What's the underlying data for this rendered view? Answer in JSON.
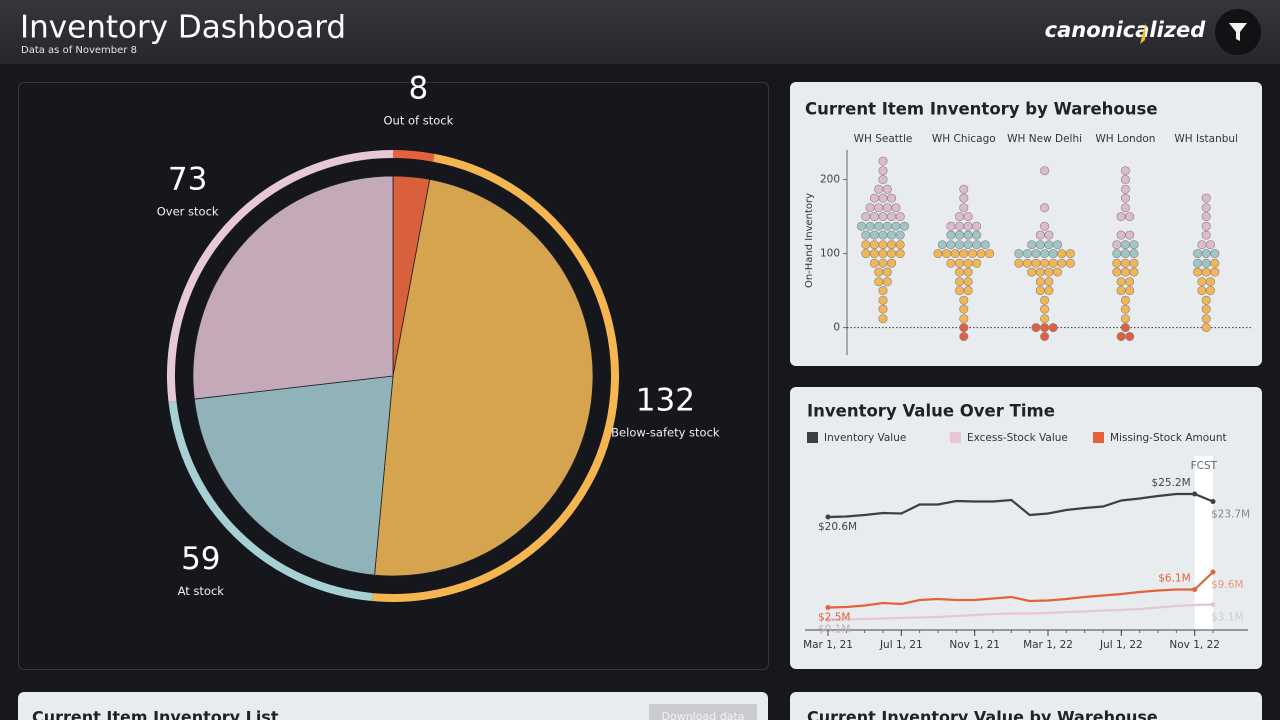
{
  "header": {
    "title": "Inventory Dashboard",
    "subtitle": "Data as of November 8",
    "logo": "canonicalized"
  },
  "status_pie": {
    "type": "pie",
    "categories": [
      "Out of stock",
      "Below-safety stock",
      "At stock",
      "Over stock"
    ],
    "values": [
      8,
      132,
      59,
      73
    ],
    "colors": [
      "#e4613b",
      "#f5b652",
      "#a6d0d3",
      "#e6c8d6"
    ],
    "inner_colors": [
      "#d9603c",
      "#d6a44e",
      "#8fb3b8",
      "#c4aab8"
    ]
  },
  "warehouse_chart": {
    "type": "beeswarm",
    "title": "Current Item Inventory by Warehouse",
    "ylabel": "On-Hand Inventory",
    "ylim": [
      -37,
      240
    ],
    "yticks": [
      0,
      100,
      200
    ],
    "status_colors": {
      "over": "#dcbccc",
      "at": "#9fc6c7",
      "below": "#f1b754",
      "out": "#de6040"
    },
    "groups": [
      {
        "name": "WH Seattle",
        "over": [
          225,
          212,
          200,
          187,
          187,
          175,
          175,
          175,
          162,
          162,
          162,
          162,
          150,
          150,
          150,
          150,
          150
        ],
        "at": [
          137,
          137,
          137,
          137,
          137,
          137,
          125,
          125,
          125,
          125,
          125
        ],
        "below": [
          112,
          112,
          112,
          112,
          112,
          100,
          100,
          100,
          100,
          100,
          87,
          87,
          87,
          75,
          75,
          62,
          62,
          50,
          37,
          25,
          12
        ],
        "out": []
      },
      {
        "name": "WH Chicago",
        "over": [
          187,
          175,
          162,
          150,
          150,
          137,
          137,
          137,
          137
        ],
        "at": [
          125,
          125,
          125,
          125,
          112,
          112,
          112,
          112,
          112,
          112
        ],
        "below": [
          100,
          100,
          100,
          100,
          100,
          100,
          100,
          87,
          87,
          87,
          87,
          75,
          75,
          62,
          62,
          50,
          50,
          37,
          25,
          12
        ],
        "out": [
          0,
          -12
        ]
      },
      {
        "name": "WH New Delhi",
        "over": [
          212,
          162,
          137,
          125,
          125
        ],
        "at": [
          112,
          112,
          112,
          112,
          100,
          100,
          100,
          100,
          100
        ],
        "below": [
          100,
          100,
          87,
          87,
          87,
          87,
          87,
          87,
          87,
          75,
          75,
          75,
          75,
          62,
          62,
          50,
          50,
          37,
          25,
          12
        ],
        "out": [
          0,
          0,
          0,
          -12
        ]
      },
      {
        "name": "WH London",
        "over": [
          212,
          200,
          187,
          175,
          162,
          150,
          150,
          125,
          125,
          112
        ],
        "at": [
          112,
          112,
          100,
          100,
          100
        ],
        "below": [
          87,
          87,
          87,
          75,
          75,
          75,
          62,
          62,
          50,
          50,
          37,
          25,
          12
        ],
        "out": [
          0,
          -12,
          -12
        ]
      },
      {
        "name": "WH Istanbul",
        "over": [
          175,
          162,
          150,
          137,
          125,
          112,
          112
        ],
        "at": [
          100,
          100,
          100,
          87,
          87
        ],
        "below": [
          87,
          75,
          75,
          75,
          62,
          62,
          50,
          50,
          37,
          25,
          12,
          0
        ],
        "out": []
      }
    ]
  },
  "value_chart": {
    "type": "line",
    "title": "Inventory Value Over Time",
    "annotation": "FCST",
    "categories": [
      "Mar 1, 21",
      null,
      null,
      null,
      "Jul 1, 21",
      null,
      null,
      null,
      "Nov 1, 21",
      null,
      null,
      null,
      "Mar 1, 22",
      null,
      null,
      null,
      "Jul 1, 22",
      null,
      null,
      null,
      "Nov 1, 22",
      null
    ],
    "ylim": [
      -2,
      28
    ],
    "series": [
      {
        "name": "Inventory Value",
        "color": "#3d3f44",
        "values": [
          20.6,
          20.7,
          21.0,
          21.4,
          21.3,
          23.1,
          23.1,
          23.8,
          23.7,
          23.7,
          24.0,
          21.0,
          21.3,
          22.0,
          22.4,
          22.7,
          23.9,
          24.3,
          24.8,
          25.2,
          25.2,
          23.7
        ],
        "value_labels": [
          "$20.6M",
          null,
          null,
          null,
          null,
          null,
          null,
          null,
          null,
          null,
          null,
          null,
          null,
          null,
          null,
          null,
          null,
          null,
          null,
          null,
          "$25.2M",
          "$23.7M"
        ]
      },
      {
        "name": "Excess-Stock Value",
        "color": "#e7c6d3",
        "values": [
          0.1,
          0.1,
          0.2,
          0.3,
          0.4,
          0.5,
          0.6,
          0.8,
          1.0,
          1.2,
          1.3,
          1.3,
          1.4,
          1.6,
          1.7,
          1.9,
          2.0,
          2.2,
          2.5,
          2.8,
          3.0,
          3.1
        ],
        "value_labels": [
          "$0.1M",
          null,
          null,
          null,
          null,
          null,
          null,
          null,
          null,
          null,
          null,
          null,
          null,
          null,
          null,
          null,
          null,
          null,
          null,
          null,
          null,
          "$3.1M"
        ]
      },
      {
        "name": "Missing-Stock Amount",
        "color": "#e4623a",
        "values": [
          2.5,
          2.6,
          2.9,
          3.4,
          3.2,
          4.0,
          4.2,
          4.0,
          4.0,
          4.3,
          4.6,
          3.8,
          3.9,
          4.2,
          4.6,
          4.9,
          5.2,
          5.6,
          5.9,
          6.1,
          6.1,
          9.6
        ],
        "value_labels": [
          "$2.5M",
          null,
          null,
          null,
          null,
          null,
          null,
          null,
          null,
          null,
          null,
          null,
          null,
          null,
          null,
          null,
          null,
          null,
          null,
          null,
          "$6.1M",
          "$9.6M"
        ]
      }
    ]
  },
  "list_panel": {
    "title": "Current Item Inventory List",
    "button": "Download data"
  },
  "value_panel": {
    "title": "Current Inventory Value by Warehouse"
  }
}
